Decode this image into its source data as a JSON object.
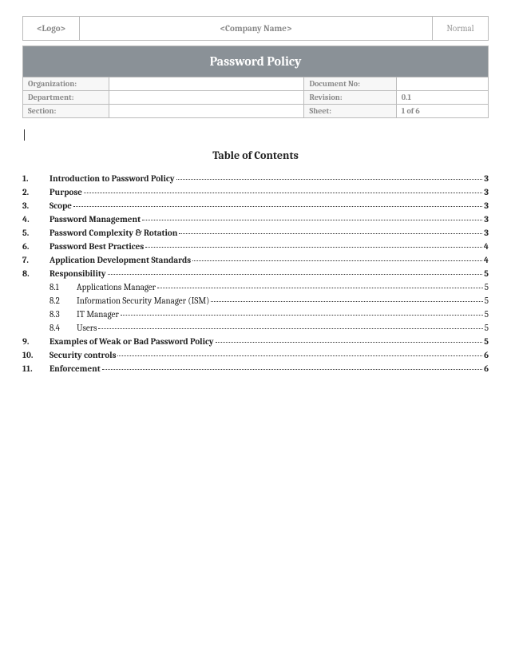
{
  "header": {
    "logo": "<Logo>",
    "company": "<Company Name>",
    "mode": "Normal"
  },
  "title": "Password Policy",
  "meta": {
    "rows": [
      {
        "l1": "Organization:",
        "v1": "",
        "l2": "Document No:",
        "v2": ""
      },
      {
        "l1": "Department:",
        "v1": "",
        "l2": "Revision:",
        "v2": "0.1"
      },
      {
        "l1": "Section:",
        "v1": "",
        "l2": "Sheet:",
        "v2": "1 of 6"
      }
    ]
  },
  "toc": {
    "title": "Table of Contents",
    "entries": [
      {
        "num": "1.",
        "text": "Introduction to Password Policy",
        "page": "3"
      },
      {
        "num": "2.",
        "text": "Purpose",
        "page": "3"
      },
      {
        "num": "3.",
        "text": "Scope",
        "page": "3"
      },
      {
        "num": "4.",
        "text": "Password Management",
        "page": "3"
      },
      {
        "num": "5.",
        "text": "Password Complexity & Rotation",
        "page": "3"
      },
      {
        "num": "6.",
        "text": "Password Best Practices",
        "page": "4"
      },
      {
        "num": "7.",
        "text": "Application Development Standards",
        "page": "4"
      },
      {
        "num": "8.",
        "text": "Responsibility",
        "page": "5",
        "children": [
          {
            "num": "8.1",
            "text": "Applications Manager",
            "page": "5"
          },
          {
            "num": "8.2",
            "text": "Information Security Manager (ISM)",
            "page": "5"
          },
          {
            "num": "8.3",
            "text": "IT Manager",
            "page": "5"
          },
          {
            "num": "8.4",
            "text": "Users",
            "page": "5"
          }
        ]
      },
      {
        "num": "9.",
        "text": "Examples of Weak or Bad Password Policy",
        "page": "5"
      },
      {
        "num": "10.",
        "text": "Security controls",
        "page": "6"
      },
      {
        "num": "11.",
        "text": "Enforcement",
        "page": "6"
      }
    ]
  },
  "colors": {
    "title_bg": "#8a9197",
    "border": "#bbbbbb",
    "muted": "#888888"
  }
}
